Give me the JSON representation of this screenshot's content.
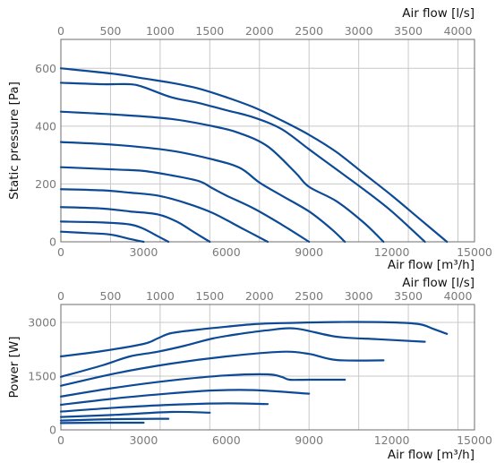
{
  "chart_data": [
    {
      "type": "line",
      "xlabel": "Air flow [m³/h]",
      "x2label": "Air flow [l/s]",
      "ylabel": "Static pressure [Pa]",
      "xlim": [
        0,
        15000
      ],
      "x2lim": [
        0,
        4166.67
      ],
      "ylim": [
        0,
        700
      ],
      "xticks": [
        0,
        3000,
        6000,
        9000,
        12000,
        15000
      ],
      "x2ticks": [
        0,
        500,
        1000,
        1500,
        2000,
        2500,
        3000,
        3500,
        4000
      ],
      "yticks": [
        0,
        200,
        400,
        600
      ],
      "grid": true,
      "color": "#0d4a96",
      "series": [
        {
          "x": [
            0,
            2000,
            3000,
            4000,
            5000,
            6000,
            7000,
            8000,
            9000,
            10000,
            11000,
            12000,
            13000,
            14000
          ],
          "values": [
            600,
            580,
            565,
            550,
            530,
            500,
            465,
            420,
            370,
            310,
            235,
            160,
            80,
            0
          ]
        },
        {
          "x": [
            0,
            1500,
            2500,
            3000,
            4000,
            5000,
            6000,
            7000,
            8000,
            9000,
            10000,
            11000,
            12000,
            13200
          ],
          "values": [
            550,
            545,
            545,
            535,
            500,
            480,
            455,
            430,
            390,
            320,
            250,
            180,
            105,
            0
          ]
        },
        {
          "x": [
            0,
            2000,
            4000,
            5500,
            6500,
            7500,
            8500,
            9000,
            10000,
            11000,
            11700
          ],
          "values": [
            450,
            440,
            425,
            400,
            375,
            330,
            240,
            190,
            140,
            65,
            0
          ]
        },
        {
          "x": [
            0,
            2000,
            4000,
            5500,
            6500,
            7200,
            8000,
            9000,
            9800,
            10300
          ],
          "values": [
            345,
            335,
            315,
            285,
            255,
            205,
            160,
            105,
            45,
            0
          ]
        },
        {
          "x": [
            0,
            2000,
            3000,
            4000,
            5000,
            5500,
            6000,
            7000,
            8000,
            9000
          ],
          "values": [
            258,
            250,
            245,
            230,
            210,
            185,
            160,
            115,
            60,
            0
          ]
        },
        {
          "x": [
            0,
            1500,
            2500,
            3500,
            4500,
            5500,
            6500,
            7500
          ],
          "values": [
            182,
            178,
            170,
            160,
            135,
            100,
            50,
            0
          ]
        },
        {
          "x": [
            0,
            1500,
            2500,
            3500,
            4200,
            4800,
            5400
          ],
          "values": [
            120,
            115,
            105,
            95,
            70,
            35,
            0
          ]
        },
        {
          "x": [
            0,
            1500,
            2500,
            3000,
            3500,
            3900
          ],
          "values": [
            70,
            67,
            60,
            45,
            20,
            0
          ]
        },
        {
          "x": [
            0,
            1000,
            1800,
            2500,
            3000
          ],
          "values": [
            35,
            30,
            25,
            10,
            0
          ]
        }
      ]
    },
    {
      "type": "line",
      "xlabel": "Air flow [m³/h]",
      "x2label": "Air flow [l/s]",
      "ylabel": "Power [W]",
      "xlim": [
        0,
        15000
      ],
      "x2lim": [
        0,
        4166.67
      ],
      "ylim": [
        0,
        3500
      ],
      "xticks": [
        0,
        3000,
        6000,
        9000,
        12000,
        15000
      ],
      "x2ticks": [
        0,
        500,
        1000,
        1500,
        2000,
        2500,
        3000,
        3500,
        4000
      ],
      "yticks": [
        0,
        1500,
        3000
      ],
      "grid": true,
      "color": "#0d4a96",
      "series": [
        {
          "x": [
            0,
            1500,
            3000,
            3500,
            4000,
            5000,
            6000,
            7000,
            8000,
            10000,
            12000,
            13000,
            13500,
            14000
          ],
          "values": [
            2050,
            2200,
            2400,
            2550,
            2700,
            2800,
            2880,
            2950,
            2980,
            3010,
            3000,
            2950,
            2820,
            2680
          ]
        },
        {
          "x": [
            0,
            1500,
            2500,
            3500,
            4500,
            5500,
            6500,
            7500,
            8500,
            10000,
            11500,
            13200
          ],
          "values": [
            1480,
            1800,
            2050,
            2180,
            2350,
            2550,
            2680,
            2780,
            2830,
            2600,
            2530,
            2460
          ]
        },
        {
          "x": [
            0,
            2000,
            4000,
            6000,
            8000,
            9000,
            10000,
            11700
          ],
          "values": [
            1230,
            1580,
            1850,
            2050,
            2180,
            2120,
            1950,
            1940
          ]
        },
        {
          "x": [
            0,
            2000,
            4000,
            6000,
            7500,
            8000,
            8300,
            9000,
            10300
          ],
          "values": [
            930,
            1180,
            1380,
            1520,
            1550,
            1480,
            1400,
            1400,
            1400
          ]
        },
        {
          "x": [
            0,
            2000,
            4000,
            5500,
            7000,
            9000
          ],
          "values": [
            700,
            880,
            1020,
            1100,
            1110,
            1010
          ]
        },
        {
          "x": [
            0,
            2000,
            4000,
            6000,
            7500
          ],
          "values": [
            510,
            620,
            700,
            740,
            720
          ]
        },
        {
          "x": [
            0,
            2000,
            4000,
            5400
          ],
          "values": [
            360,
            420,
            500,
            480
          ]
        },
        {
          "x": [
            0,
            2000,
            3900
          ],
          "values": [
            260,
            300,
            310
          ]
        },
        {
          "x": [
            0,
            1500,
            3000
          ],
          "values": [
            190,
            200,
            200
          ]
        }
      ]
    }
  ]
}
